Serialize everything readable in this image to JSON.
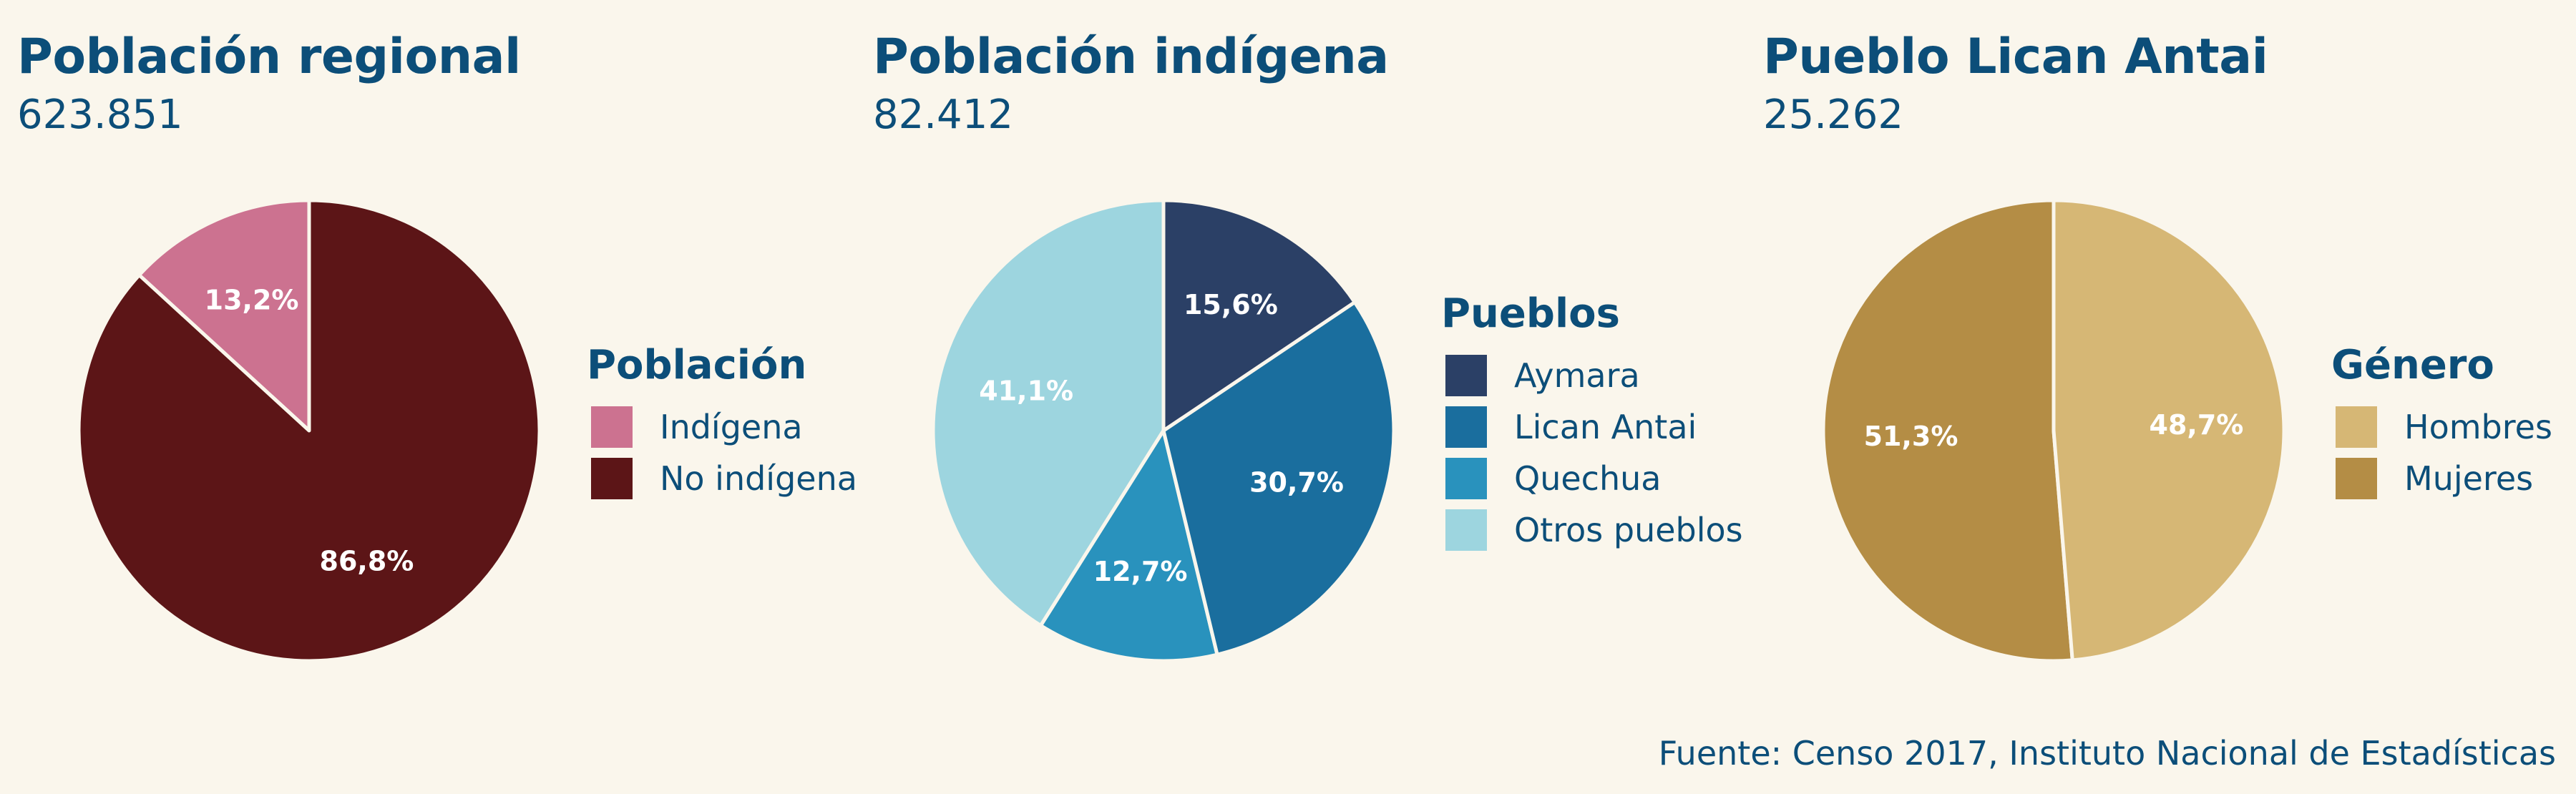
{
  "chart_data": [
    {
      "type": "pie",
      "title": "Población regional",
      "total": "623.851",
      "legend_title": "Población",
      "legend_placement": "right",
      "slices": [
        {
          "label": "Indígena",
          "value": 13.2,
          "display": "13,2%",
          "color": "#cc7290"
        },
        {
          "label": "No indígena",
          "value": 86.8,
          "display": "86,8%",
          "color": "#5c1517"
        }
      ]
    },
    {
      "type": "pie",
      "title": "Población indígena",
      "total": "82.412",
      "legend_title": "Pueblos",
      "legend_placement": "right",
      "slices": [
        {
          "label": "Aymara",
          "value": 15.6,
          "display": "15,6%",
          "color": "#2b4066"
        },
        {
          "label": "Lican Antai",
          "value": 30.7,
          "display": "30,7%",
          "color": "#1a6e9e"
        },
        {
          "label": "Quechua",
          "value": 12.7,
          "display": "12,7%",
          "color": "#2992bd"
        },
        {
          "label": "Otros pueblos",
          "value": 41.1,
          "display": "41,1%",
          "color": "#9dd5df"
        }
      ]
    },
    {
      "type": "pie",
      "title": "Pueblo Lican Antai",
      "total": "25.262",
      "legend_title": "Género",
      "legend_placement": "right",
      "slices": [
        {
          "label": "Hombres",
          "value": 48.7,
          "display": "48,7%",
          "color": "#d6b775"
        },
        {
          "label": "Mujeres",
          "value": 51.3,
          "display": "51,3%",
          "color": "#b48d45"
        }
      ]
    }
  ],
  "source": "Fuente: Censo 2017, Instituto Nacional de Estadísticas"
}
